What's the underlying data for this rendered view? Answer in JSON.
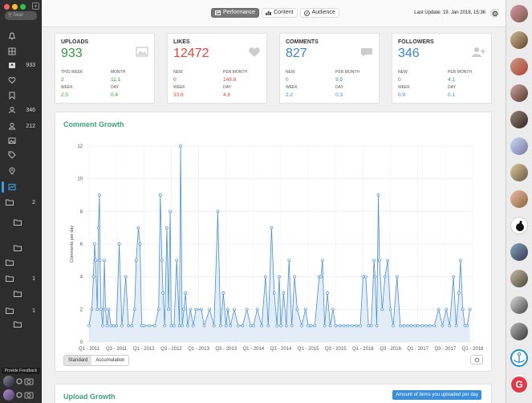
{
  "window": {
    "traffic_lights": [
      "#ff5f57",
      "#ffbd2e",
      "#28c840"
    ]
  },
  "sidebar": {
    "search_placeholder": "Sear",
    "items": [
      {
        "icon": "bell-icon",
        "count": ""
      },
      {
        "icon": "grid-icon",
        "count": ""
      },
      {
        "icon": "uploads-icon",
        "count": "933"
      },
      {
        "icon": "heart-icon",
        "count": ""
      },
      {
        "icon": "bookmark-icon",
        "count": ""
      },
      {
        "icon": "user-icon",
        "count": "346"
      },
      {
        "icon": "user-outline-icon",
        "count": "212"
      },
      {
        "icon": "image-icon",
        "count": ""
      },
      {
        "icon": "tag-icon",
        "count": ""
      },
      {
        "icon": "location-icon",
        "count": ""
      },
      {
        "icon": "chart-icon",
        "count": ""
      }
    ],
    "folders": [
      {
        "count": "2"
      },
      {
        "count": ""
      },
      {
        "count": ""
      },
      {
        "count": ""
      },
      {
        "count": "1"
      },
      {
        "count": ""
      },
      {
        "count": "1"
      },
      {
        "count": ""
      }
    ],
    "feedback_label": "Provide Feedback"
  },
  "topbar": {
    "tabs": [
      {
        "label": "Performance",
        "active": true
      },
      {
        "label": "Content",
        "active": false
      },
      {
        "label": "Audience",
        "active": false
      }
    ],
    "last_update": "Last Update: 19. Jan 2018, 15:36"
  },
  "stats": [
    {
      "title": "UPLOADS",
      "value": "933",
      "color": "#2e9c3e",
      "icon": "image-icon",
      "l1": "THIS WEEK",
      "v1": "2",
      "l2": "MONTH",
      "v2": "11.1",
      "l3": "WEEK",
      "v3": "2.5",
      "l4": "DAY",
      "v4": "0.4"
    },
    {
      "title": "LIKES",
      "value": "12472",
      "color": "#e0483e",
      "icon": "heart-icon",
      "l1": "NEW",
      "v1": "0",
      "l2": "PER MONTH",
      "v2": "148.8",
      "l3": "WEEK",
      "v3": "33.6",
      "l4": "DAY",
      "v4": "4.8"
    },
    {
      "title": "COMMENTS",
      "value": "827",
      "color": "#3a86c8",
      "icon": "comment-icon",
      "l1": "NEW",
      "v1": "0",
      "l2": "PER MONTH",
      "v2": "9.9",
      "l3": "WEEK",
      "v3": "2.2",
      "l4": "DAY",
      "v4": "0.3"
    },
    {
      "title": "FOLLOWERS",
      "value": "346",
      "color": "#3a86c8",
      "icon": "add-user-icon",
      "l1": "NEW",
      "v1": "0",
      "l2": "PER MONTH",
      "v2": "4.1",
      "l3": "WEEK",
      "v3": "0.9",
      "l4": "DAY",
      "v4": "0.1"
    }
  ],
  "comment_panel": {
    "title": "Comment Growth",
    "btn_standard": "Standard",
    "btn_accumulation": "Accumulation"
  },
  "upload_panel": {
    "title": "Upload Growth",
    "button": "Amount of items you uploaded per day"
  },
  "chart_data": {
    "type": "area",
    "title": "Comment Growth",
    "ylabel": "Comments per day",
    "xlabel": "",
    "ylim": [
      0,
      12
    ],
    "yticks": [
      0,
      2,
      4,
      6,
      8,
      10,
      12
    ],
    "xticks": [
      "Q1 - 2011",
      "Q3 - 2011",
      "Q1 - 2012",
      "Q3 - 2012",
      "Q1 - 2013",
      "Q3 - 2013",
      "Q1 - 2014",
      "Q3 - 2014",
      "Q1 - 2015",
      "Q3 - 2015",
      "Q1 - 2016",
      "Q3 - 2016",
      "Q1 - 2017",
      "Q3 - 2017",
      "Q1 - 2018"
    ],
    "grid": true,
    "series": [
      {
        "color": "#4a90d0",
        "fill": "#dbe9f6",
        "points": [
          [
            2011.0,
            1
          ],
          [
            2011.05,
            2
          ],
          [
            2011.08,
            4
          ],
          [
            2011.1,
            6
          ],
          [
            2011.12,
            5
          ],
          [
            2011.15,
            2
          ],
          [
            2011.17,
            7
          ],
          [
            2011.19,
            9
          ],
          [
            2011.2,
            5
          ],
          [
            2011.22,
            2
          ],
          [
            2011.25,
            1
          ],
          [
            2011.28,
            5
          ],
          [
            2011.3,
            2
          ],
          [
            2011.33,
            1
          ],
          [
            2011.36,
            2
          ],
          [
            2011.4,
            1
          ],
          [
            2011.45,
            1
          ],
          [
            2011.5,
            1
          ],
          [
            2011.55,
            6
          ],
          [
            2011.6,
            1
          ],
          [
            2011.67,
            4
          ],
          [
            2011.72,
            1
          ],
          [
            2011.78,
            1
          ],
          [
            2011.83,
            2
          ],
          [
            2011.86,
            5
          ],
          [
            2011.9,
            7
          ],
          [
            2011.93,
            6
          ],
          [
            2011.96,
            1
          ],
          [
            2012.0,
            1
          ],
          [
            2012.1,
            1
          ],
          [
            2012.2,
            1
          ],
          [
            2012.27,
            2
          ],
          [
            2012.3,
            9
          ],
          [
            2012.33,
            5
          ],
          [
            2012.35,
            3
          ],
          [
            2012.38,
            1
          ],
          [
            2012.42,
            7
          ],
          [
            2012.45,
            2
          ],
          [
            2012.48,
            8
          ],
          [
            2012.5,
            1
          ],
          [
            2012.55,
            1
          ],
          [
            2012.6,
            5
          ],
          [
            2012.65,
            1
          ],
          [
            2012.67,
            12
          ],
          [
            2012.7,
            1
          ],
          [
            2012.73,
            2
          ],
          [
            2012.76,
            3
          ],
          [
            2012.8,
            1
          ],
          [
            2012.85,
            2
          ],
          [
            2012.9,
            1
          ],
          [
            2012.95,
            2
          ],
          [
            2013.05,
            2
          ],
          [
            2013.1,
            1
          ],
          [
            2013.2,
            2
          ],
          [
            2013.28,
            1
          ],
          [
            2013.35,
            8
          ],
          [
            2013.4,
            1
          ],
          [
            2013.45,
            3
          ],
          [
            2013.5,
            1
          ],
          [
            2013.53,
            2
          ],
          [
            2013.58,
            1
          ],
          [
            2013.65,
            2
          ],
          [
            2013.72,
            1
          ],
          [
            2013.8,
            1
          ],
          [
            2013.88,
            2
          ],
          [
            2013.95,
            1
          ],
          [
            2014.0,
            1
          ],
          [
            2014.07,
            2
          ],
          [
            2014.15,
            1
          ],
          [
            2014.22,
            4
          ],
          [
            2014.27,
            1
          ],
          [
            2014.33,
            7
          ],
          [
            2014.38,
            3
          ],
          [
            2014.43,
            1
          ],
          [
            2014.47,
            4
          ],
          [
            2014.5,
            1
          ],
          [
            2014.55,
            3
          ],
          [
            2014.6,
            1
          ],
          [
            2014.65,
            5
          ],
          [
            2014.7,
            1
          ],
          [
            2014.75,
            4
          ],
          [
            2014.8,
            2
          ],
          [
            2014.88,
            1
          ],
          [
            2014.95,
            2
          ],
          [
            2015.0,
            1
          ],
          [
            2015.05,
            1
          ],
          [
            2015.12,
            1
          ],
          [
            2015.2,
            4
          ],
          [
            2015.23,
            4
          ],
          [
            2015.26,
            5
          ],
          [
            2015.3,
            1
          ],
          [
            2015.35,
            3
          ],
          [
            2015.4,
            1
          ],
          [
            2015.45,
            2
          ],
          [
            2015.5,
            1
          ],
          [
            2015.58,
            1
          ],
          [
            2015.65,
            1
          ],
          [
            2015.72,
            1
          ],
          [
            2015.8,
            1
          ],
          [
            2015.88,
            1
          ],
          [
            2015.95,
            1
          ],
          [
            2016.0,
            4
          ],
          [
            2016.05,
            4
          ],
          [
            2016.1,
            1
          ],
          [
            2016.15,
            1
          ],
          [
            2016.2,
            5
          ],
          [
            2016.22,
            4
          ],
          [
            2016.25,
            1
          ],
          [
            2016.28,
            9
          ],
          [
            2016.3,
            5
          ],
          [
            2016.35,
            2
          ],
          [
            2016.4,
            4
          ],
          [
            2016.45,
            5
          ],
          [
            2016.5,
            2
          ],
          [
            2016.55,
            1
          ],
          [
            2016.62,
            4
          ],
          [
            2016.68,
            1
          ],
          [
            2016.75,
            1
          ],
          [
            2016.82,
            1
          ],
          [
            2016.88,
            1
          ],
          [
            2016.95,
            1
          ],
          [
            2017.0,
            1
          ],
          [
            2017.08,
            1
          ],
          [
            2017.15,
            1
          ],
          [
            2017.22,
            1
          ],
          [
            2017.3,
            1
          ],
          [
            2017.38,
            2
          ],
          [
            2017.45,
            1
          ],
          [
            2017.52,
            2
          ],
          [
            2017.58,
            1
          ],
          [
            2017.65,
            4
          ],
          [
            2017.7,
            1
          ],
          [
            2017.75,
            3
          ],
          [
            2017.78,
            5
          ],
          [
            2017.82,
            2
          ],
          [
            2017.86,
            1
          ],
          [
            2017.9,
            1
          ],
          [
            2017.95,
            2
          ]
        ]
      }
    ]
  }
}
